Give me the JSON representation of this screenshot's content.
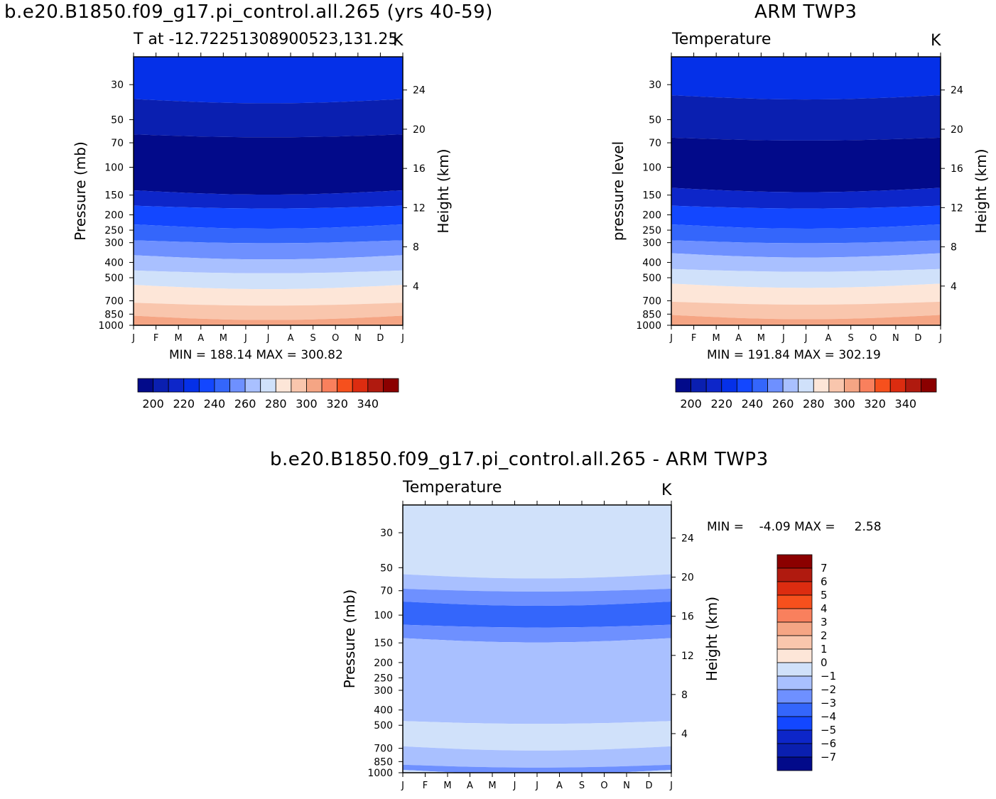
{
  "titles": {
    "left": "b.e20.B1850.f09_g17.pi_control.all.265 (yrs 40-59)",
    "right": "ARM TWP3",
    "bottom": "b.e20.B1850.f09_g17.pi_control.all.265 - ARM TWP3"
  },
  "panels": {
    "left": {
      "subtitle": "T at -12.7225130890052​3,131.25",
      "units": "K",
      "ylabel": "Pressure (mb)",
      "ylabel2": "Height (km)",
      "stats": "MIN = 188.14 MAX = 300.82"
    },
    "right": {
      "subtitle": "Temperature",
      "units": "K",
      "ylabel": "pressure level",
      "ylabel2": "Height (km)",
      "stats": "MIN = 191.84 MAX = 302.19"
    },
    "diff": {
      "subtitle": "Temperature",
      "units": "K",
      "ylabel": "Pressure (mb)",
      "ylabel2": "Height (km)",
      "stats": "MIN =    -4.09 MAX =     2.58"
    }
  },
  "chart_data": [
    {
      "type": "heatmap",
      "panel": "model",
      "x_ticks": [
        "J",
        "F",
        "M",
        "A",
        "M",
        "J",
        "J",
        "A",
        "S",
        "O",
        "N",
        "D",
        "J"
      ],
      "y_ticks_pressure_mb": [
        "30",
        "50",
        "70",
        "100",
        "150",
        "200",
        "250",
        "300",
        "400",
        "500",
        "700",
        "850",
        "1000"
      ],
      "y_ticks_height_km": [
        "24",
        "20",
        "16",
        "12",
        "8",
        "4"
      ],
      "y_scale": "log pressure",
      "units": "K",
      "min": 188.14,
      "max": 300.82,
      "bands": [
        {
          "p_top": 20,
          "p_bottom": 37,
          "color": "#0530e8"
        },
        {
          "p_top": 37,
          "p_bottom": 62,
          "color": "#0a1fb0"
        },
        {
          "p_top": 62,
          "p_bottom": 140,
          "color": "#020a8a"
        },
        {
          "p_top": 140,
          "p_bottom": 175,
          "color": "#0d26c9"
        },
        {
          "p_top": 175,
          "p_bottom": 230,
          "color": "#1347ff"
        },
        {
          "p_top": 230,
          "p_bottom": 290,
          "color": "#3466fb"
        },
        {
          "p_top": 290,
          "p_bottom": 360,
          "color": "#6e90ff"
        },
        {
          "p_top": 360,
          "p_bottom": 450,
          "color": "#a9c0ff"
        },
        {
          "p_top": 450,
          "p_bottom": 555,
          "color": "#d0e1fa"
        },
        {
          "p_top": 555,
          "p_bottom": 720,
          "color": "#fde6d8"
        },
        {
          "p_top": 720,
          "p_bottom": 870,
          "color": "#f9c6ad"
        },
        {
          "p_top": 870,
          "p_bottom": 1000,
          "color": "#f5a584"
        }
      ],
      "colorbar": {
        "ticks": [
          "200",
          "220",
          "240",
          "260",
          "280",
          "300",
          "320",
          "340"
        ]
      }
    },
    {
      "type": "heatmap",
      "panel": "observations",
      "x_ticks": [
        "J",
        "F",
        "M",
        "A",
        "M",
        "J",
        "J",
        "A",
        "S",
        "O",
        "N",
        "D",
        "J"
      ],
      "y_ticks_pressure_mb": [
        "30",
        "50",
        "70",
        "100",
        "150",
        "200",
        "250",
        "300",
        "400",
        "500",
        "700",
        "850",
        "1000"
      ],
      "y_ticks_height_km": [
        "24",
        "20",
        "16",
        "12",
        "8",
        "4"
      ],
      "y_scale": "log pressure",
      "units": "K",
      "min": 191.84,
      "max": 302.19,
      "bands": [
        {
          "p_top": 20,
          "p_bottom": 35,
          "color": "#0530e8"
        },
        {
          "p_top": 35,
          "p_bottom": 65,
          "color": "#0a1fb0"
        },
        {
          "p_top": 65,
          "p_bottom": 135,
          "color": "#020a8a"
        },
        {
          "p_top": 135,
          "p_bottom": 175,
          "color": "#0d26c9"
        },
        {
          "p_top": 175,
          "p_bottom": 230,
          "color": "#1347ff"
        },
        {
          "p_top": 230,
          "p_bottom": 290,
          "color": "#3466fb"
        },
        {
          "p_top": 290,
          "p_bottom": 350,
          "color": "#6e90ff"
        },
        {
          "p_top": 350,
          "p_bottom": 440,
          "color": "#a9c0ff"
        },
        {
          "p_top": 440,
          "p_bottom": 545,
          "color": "#d0e1fa"
        },
        {
          "p_top": 545,
          "p_bottom": 710,
          "color": "#fde6d8"
        },
        {
          "p_top": 710,
          "p_bottom": 860,
          "color": "#f9c6ad"
        },
        {
          "p_top": 860,
          "p_bottom": 1000,
          "color": "#f5a584"
        }
      ],
      "colorbar": {
        "ticks": [
          "200",
          "220",
          "240",
          "260",
          "280",
          "300",
          "320",
          "340"
        ]
      }
    },
    {
      "type": "heatmap",
      "panel": "model minus observations",
      "x_ticks": [
        "J",
        "F",
        "M",
        "A",
        "M",
        "J",
        "J",
        "A",
        "S",
        "O",
        "N",
        "D",
        "J"
      ],
      "y_ticks_pressure_mb": [
        "30",
        "50",
        "70",
        "100",
        "150",
        "200",
        "250",
        "300",
        "400",
        "500",
        "700",
        "850",
        "1000"
      ],
      "y_ticks_height_km": [
        "24",
        "20",
        "16",
        "12",
        "8",
        "4"
      ],
      "y_scale": "log pressure",
      "units": "K",
      "min": -4.09,
      "max": 2.58,
      "bands": [
        {
          "p_top": 20,
          "p_bottom": 55,
          "color": "#d0e1fa"
        },
        {
          "p_top": 55,
          "p_bottom": 68,
          "color": "#a9c0ff"
        },
        {
          "p_top": 68,
          "p_bottom": 82,
          "color": "#6e90ff"
        },
        {
          "p_top": 82,
          "p_bottom": 115,
          "color": "#3466fb"
        },
        {
          "p_top": 115,
          "p_bottom": 140,
          "color": "#6e90ff"
        },
        {
          "p_top": 140,
          "p_bottom": 470,
          "color": "#a9c0ff"
        },
        {
          "p_top": 470,
          "p_bottom": 680,
          "color": "#d0e1fa"
        },
        {
          "p_top": 680,
          "p_bottom": 890,
          "color": "#a9c0ff"
        },
        {
          "p_top": 890,
          "p_bottom": 960,
          "color": "#6e90ff"
        },
        {
          "p_top": 960,
          "p_bottom": 1000,
          "color": "#d0e1fa"
        }
      ],
      "colorbar": {
        "ticks": [
          "7",
          "6",
          "5",
          "4",
          "3",
          "2",
          "1",
          "0",
          "-1",
          "-2",
          "-3",
          "-4",
          "-5",
          "-6",
          "-7"
        ],
        "colors": [
          "#8b0000",
          "#b01a0f",
          "#dc2c10",
          "#f6501d",
          "#f9805d",
          "#f5a584",
          "#f9c6ad",
          "#fde6d8",
          "#d0e1fa",
          "#a9c0ff",
          "#6e90ff",
          "#3466fb",
          "#1347ff",
          "#0d26c9",
          "#0a1fb0",
          "#020a8a"
        ]
      }
    }
  ],
  "colorbar_temperature_colors": [
    "#020a8a",
    "#0a1fb0",
    "#0d26c9",
    "#0530e8",
    "#1347ff",
    "#3466fb",
    "#6e90ff",
    "#a9c0ff",
    "#d0e1fa",
    "#fde6d8",
    "#f9c6ad",
    "#f5a584",
    "#f9805d",
    "#f6501d",
    "#dc2c10",
    "#b01a0f",
    "#8b0000"
  ]
}
